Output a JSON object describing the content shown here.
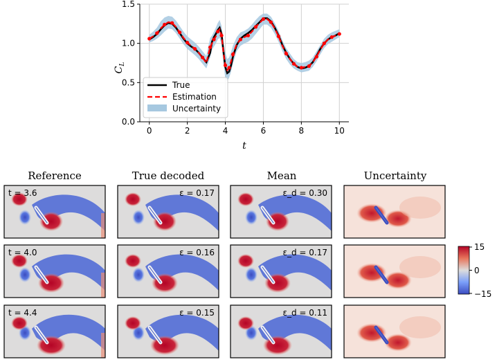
{
  "chart_data": [
    {
      "type": "line",
      "title": "",
      "xlabel": "t",
      "ylabel": "C_L",
      "xlim": [
        -0.5,
        10.5
      ],
      "ylim": [
        0.0,
        1.5
      ],
      "x_ticks": [
        "0",
        "2",
        "4",
        "6",
        "8",
        "10"
      ],
      "y_ticks": [
        "0.0",
        "0.5",
        "1.0",
        "1.5"
      ],
      "grid": true,
      "legend_position": "lower-left",
      "legend": [
        "True",
        "Estimation",
        "Uncertainty"
      ],
      "x": [
        0.0,
        0.2,
        0.4,
        0.6,
        0.8,
        1.0,
        1.2,
        1.4,
        1.6,
        1.8,
        2.0,
        2.2,
        2.4,
        2.6,
        2.8,
        3.0,
        3.2,
        3.3,
        3.4,
        3.5,
        3.6,
        3.7,
        3.8,
        3.9,
        4.0,
        4.1,
        4.2,
        4.3,
        4.4,
        4.6,
        4.8,
        5.0,
        5.2,
        5.4,
        5.6,
        5.8,
        6.0,
        6.2,
        6.4,
        6.6,
        6.8,
        7.0,
        7.2,
        7.4,
        7.6,
        7.8,
        8.0,
        8.2,
        8.4,
        8.6,
        8.8,
        9.0,
        9.2,
        9.4,
        9.6,
        9.8,
        10.0
      ],
      "series": [
        {
          "name": "True",
          "color": "#000000",
          "values": [
            1.05,
            1.08,
            1.12,
            1.18,
            1.23,
            1.26,
            1.25,
            1.2,
            1.13,
            1.06,
            1.0,
            0.96,
            0.93,
            0.88,
            0.82,
            0.76,
            0.88,
            1.02,
            1.08,
            1.12,
            1.17,
            1.2,
            1.12,
            0.9,
            0.7,
            0.62,
            0.64,
            0.72,
            0.83,
            0.98,
            1.06,
            1.1,
            1.13,
            1.17,
            1.22,
            1.27,
            1.32,
            1.32,
            1.28,
            1.2,
            1.1,
            0.98,
            0.88,
            0.8,
            0.74,
            0.7,
            0.68,
            0.69,
            0.71,
            0.76,
            0.84,
            0.93,
            1.0,
            1.05,
            1.08,
            1.1,
            1.13
          ]
        },
        {
          "name": "Estimation",
          "color": "#ff0000",
          "values": [
            1.06,
            1.09,
            1.13,
            1.19,
            1.24,
            1.27,
            1.26,
            1.21,
            1.14,
            1.07,
            1.01,
            0.97,
            0.93,
            0.88,
            0.82,
            0.75,
            0.95,
            1.0,
            1.05,
            1.09,
            1.15,
            1.18,
            1.1,
            0.88,
            0.72,
            0.66,
            0.69,
            0.77,
            0.86,
            0.99,
            1.05,
            1.08,
            1.1,
            1.15,
            1.21,
            1.26,
            1.31,
            1.31,
            1.27,
            1.19,
            1.09,
            0.97,
            0.87,
            0.8,
            0.74,
            0.7,
            0.69,
            0.7,
            0.71,
            0.76,
            0.83,
            0.92,
            1.0,
            1.05,
            1.08,
            1.1,
            1.12
          ]
        },
        {
          "name": "Uncertainty",
          "color": "#a6c8e0",
          "type": "band",
          "lower": [
            1.01,
            1.03,
            1.06,
            1.1,
            1.15,
            1.19,
            1.18,
            1.13,
            1.06,
            0.99,
            0.93,
            0.89,
            0.85,
            0.8,
            0.74,
            0.68,
            0.82,
            0.92,
            0.96,
            1.0,
            1.05,
            1.07,
            0.98,
            0.76,
            0.55,
            0.52,
            0.56,
            0.64,
            0.74,
            0.9,
            0.97,
            1.0,
            1.02,
            1.06,
            1.12,
            1.18,
            1.24,
            1.24,
            1.2,
            1.12,
            1.02,
            0.9,
            0.8,
            0.73,
            0.68,
            0.65,
            0.63,
            0.64,
            0.65,
            0.7,
            0.77,
            0.86,
            0.94,
            0.99,
            1.02,
            1.05,
            1.08
          ],
          "upper": [
            1.11,
            1.15,
            1.2,
            1.28,
            1.33,
            1.35,
            1.34,
            1.29,
            1.22,
            1.15,
            1.09,
            1.05,
            1.01,
            0.96,
            0.9,
            0.84,
            1.07,
            1.1,
            1.15,
            1.2,
            1.26,
            1.3,
            1.22,
            1.0,
            0.88,
            0.8,
            0.82,
            0.89,
            0.97,
            1.08,
            1.14,
            1.16,
            1.19,
            1.24,
            1.3,
            1.35,
            1.38,
            1.38,
            1.34,
            1.26,
            1.16,
            1.04,
            0.94,
            0.87,
            0.8,
            0.76,
            0.75,
            0.76,
            0.78,
            0.82,
            0.9,
            0.98,
            1.06,
            1.11,
            1.14,
            1.16,
            1.18
          ]
        }
      ]
    },
    {
      "type": "heatmap",
      "column_titles": [
        "Reference",
        "True decoded",
        "Mean",
        "Uncertainty"
      ],
      "rows": [
        {
          "t_label": "t = 3.6",
          "eps": "ε = 0.17",
          "eps_d": "ε_d = 0.30"
        },
        {
          "t_label": "t = 4.0",
          "eps": "ε = 0.16",
          "eps_d": "ε_d = 0.17"
        },
        {
          "t_label": "t = 4.4",
          "eps": "ε = 0.15",
          "eps_d": "ε_d = 0.11"
        }
      ],
      "colorbar": {
        "ticks": [
          "15",
          "0",
          "−15"
        ],
        "min": -15,
        "max": 15,
        "colors": {
          "high": "#b40426",
          "mid": "#dddcdc",
          "low": "#3b4cc0"
        }
      }
    }
  ]
}
